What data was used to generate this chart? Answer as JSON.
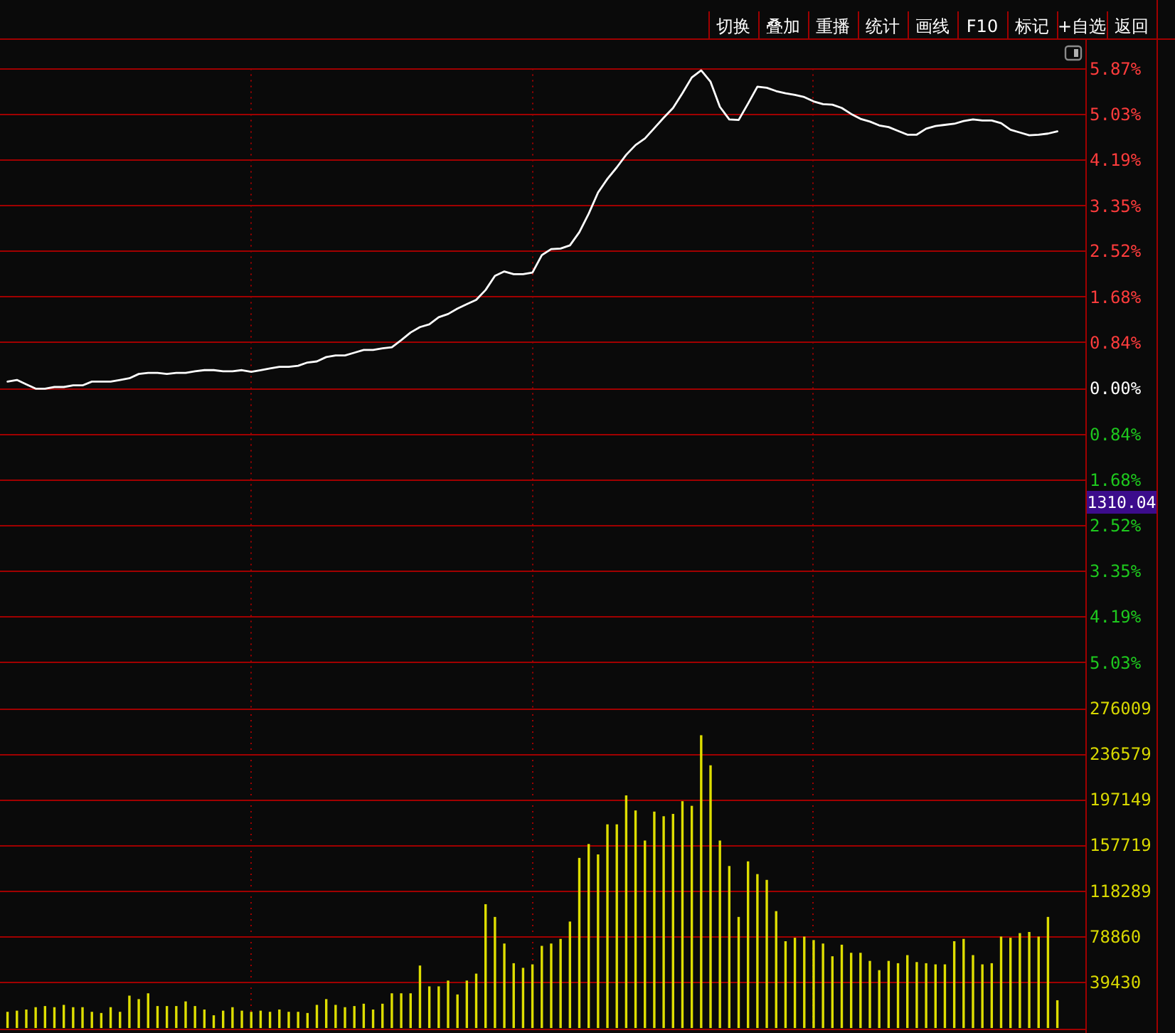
{
  "chart_data": [
    {
      "type": "line",
      "categories": [
        null,
        null,
        null,
        null,
        null,
        null,
        null,
        null,
        null,
        null,
        null,
        null,
        null,
        null,
        null,
        null,
        null,
        null,
        null,
        null,
        null,
        null,
        null,
        null,
        null,
        null,
        null,
        null,
        null,
        null,
        null,
        null,
        null,
        null,
        null,
        null,
        null,
        null,
        null,
        null,
        null,
        null,
        null,
        null,
        null,
        null,
        null,
        null,
        null,
        null,
        null,
        null,
        null,
        null,
        null,
        null,
        null,
        null,
        null,
        null,
        null,
        null,
        null,
        null,
        null,
        null,
        null,
        null,
        null,
        null,
        null,
        null,
        null,
        null,
        null,
        null,
        null,
        null,
        null,
        null,
        null,
        null,
        null,
        null,
        null,
        null,
        null,
        null,
        null,
        null,
        null,
        null,
        null,
        null,
        null,
        null,
        null,
        null,
        null,
        null,
        null,
        null,
        null,
        null,
        null,
        null,
        null,
        null,
        null,
        null,
        null,
        null,
        null
      ],
      "values": [
        0.13,
        0.16,
        0.08,
        0.0,
        0.0,
        0.03,
        0.03,
        0.06,
        0.06,
        0.13,
        0.13,
        0.13,
        0.16,
        0.19,
        0.27,
        0.29,
        0.29,
        0.27,
        0.29,
        0.29,
        0.32,
        0.34,
        0.34,
        0.32,
        0.32,
        0.34,
        0.31,
        0.34,
        0.37,
        0.4,
        0.4,
        0.42,
        0.48,
        0.5,
        0.58,
        0.61,
        0.61,
        0.66,
        0.71,
        0.71,
        0.74,
        0.76,
        0.89,
        1.03,
        1.13,
        1.18,
        1.31,
        1.37,
        1.47,
        1.55,
        1.63,
        1.81,
        2.07,
        2.15,
        2.1,
        2.1,
        2.13,
        2.45,
        2.56,
        2.57,
        2.63,
        2.87,
        3.21,
        3.6,
        3.85,
        4.06,
        4.29,
        4.47,
        4.59,
        4.78,
        4.97,
        5.15,
        5.42,
        5.71,
        5.84,
        5.63,
        5.17,
        4.94,
        4.93,
        5.23,
        5.54,
        5.52,
        5.46,
        5.42,
        5.39,
        5.35,
        5.27,
        5.22,
        5.21,
        5.15,
        5.04,
        4.95,
        4.9,
        4.83,
        4.8,
        4.73,
        4.66,
        4.66,
        4.77,
        4.82,
        4.84,
        4.86,
        4.91,
        4.94,
        4.92,
        4.92,
        4.87,
        4.75,
        4.7,
        4.65,
        4.66,
        4.68,
        4.72
      ],
      "color": "#ffffff",
      "ylim": [
        -5.87,
        5.87
      ],
      "yticks": [
        {
          "value": 5.87,
          "label": "5.87%"
        },
        {
          "value": 5.03,
          "label": "5.03%"
        },
        {
          "value": 4.19,
          "label": "4.19%"
        },
        {
          "value": 3.35,
          "label": "3.35%"
        },
        {
          "value": 2.52,
          "label": "2.52%"
        },
        {
          "value": 1.68,
          "label": "1.68%"
        },
        {
          "value": 0.84,
          "label": "0.84%"
        },
        {
          "value": 0,
          "label": "0.00%"
        },
        {
          "value": -0.84,
          "label": "0.84%"
        },
        {
          "value": -1.68,
          "label": "1.68%"
        },
        {
          "value": -2.52,
          "label": "2.52%"
        },
        {
          "value": -3.35,
          "label": "3.35%"
        },
        {
          "value": -4.19,
          "label": "4.19%"
        },
        {
          "value": -5.03,
          "label": "5.03%"
        }
      ],
      "grid": true,
      "tick_labels": "y",
      "annotations": [
        "切换",
        "叠加",
        "重播",
        "统计",
        "画线",
        "F10",
        "标记",
        "+自选",
        "返回",
        "1310.04"
      ]
    },
    {
      "type": "bar",
      "categories": [
        null,
        null,
        null,
        null,
        null,
        null,
        null,
        null,
        null,
        null,
        null,
        null,
        null,
        null,
        null,
        null,
        null,
        null,
        null,
        null,
        null,
        null,
        null,
        null,
        null,
        null,
        null,
        null,
        null,
        null,
        null,
        null,
        null,
        null,
        null,
        null,
        null,
        null,
        null,
        null,
        null,
        null,
        null,
        null,
        null,
        null,
        null,
        null,
        null,
        null,
        null,
        null,
        null,
        null,
        null,
        null,
        null,
        null,
        null,
        null,
        null,
        null,
        null,
        null,
        null,
        null,
        null,
        null,
        null,
        null,
        null,
        null,
        null,
        null,
        null,
        null,
        null,
        null,
        null,
        null,
        null,
        null,
        null,
        null,
        null,
        null,
        null,
        null,
        null,
        null,
        null,
        null,
        null,
        null,
        null,
        null,
        null,
        null,
        null,
        null,
        null,
        null,
        null,
        null,
        null,
        null,
        null,
        null,
        null,
        null,
        null,
        null,
        null
      ],
      "values": [
        14000,
        15000,
        16000,
        18000,
        19000,
        18000,
        20000,
        18000,
        18000,
        14000,
        13000,
        18000,
        14000,
        28000,
        25000,
        30000,
        19000,
        19000,
        19000,
        23000,
        19000,
        16000,
        11000,
        15000,
        18000,
        15000,
        14000,
        15000,
        14000,
        16000,
        14000,
        14000,
        13000,
        20000,
        25000,
        20000,
        18000,
        19000,
        21000,
        16000,
        21000,
        30000,
        30000,
        30000,
        54000,
        36000,
        36000,
        41000,
        29000,
        41000,
        47000,
        107000,
        96000,
        73000,
        56000,
        52000,
        55000,
        71000,
        73000,
        77000,
        92000,
        147000,
        159000,
        150000,
        176000,
        176000,
        201000,
        188000,
        162000,
        187000,
        183000,
        185000,
        196000,
        192000,
        253000,
        227000,
        162000,
        140000,
        96000,
        144000,
        133000,
        128000,
        101000,
        75000,
        78000,
        79000,
        76000,
        73000,
        62000,
        72000,
        65000,
        65000,
        58000,
        50000,
        58000,
        56000,
        63000,
        57000,
        56000,
        55000,
        55000,
        75000,
        77000,
        63000,
        55000,
        56000,
        79000,
        78000,
        82000,
        83000,
        79000,
        96000,
        24000
      ],
      "color": "#dede00",
      "ylim": [
        0,
        276009
      ],
      "yticks": [
        39430,
        78860,
        118289,
        157719,
        197149,
        236579,
        276009
      ],
      "grid": true,
      "tick_labels": "y"
    }
  ]
}
